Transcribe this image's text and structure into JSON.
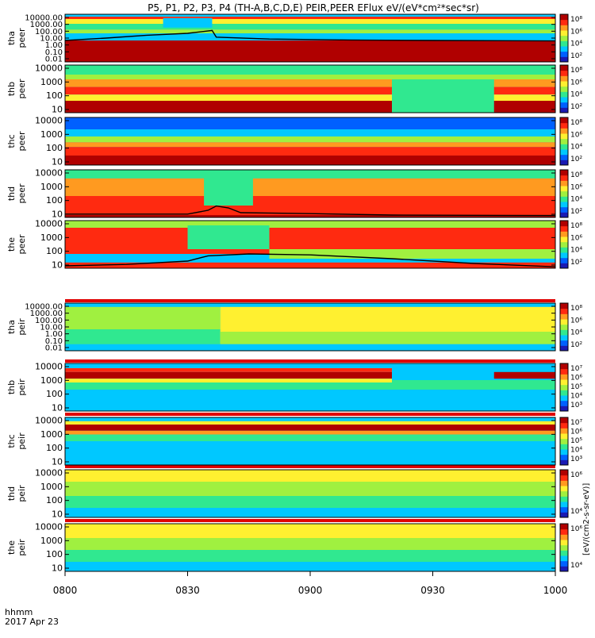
{
  "chart_data": {
    "type": "heatmap",
    "title": "P5, P1, P2, P3, P4 (TH-A,B,C,D,E) PEIR,PEER EFlux eV/(eV*cm²*sec*sr)",
    "colorbar_title": "[eV/(cm2-s-sr-eV)]",
    "x": {
      "ticks": [
        "0800",
        "0830",
        "0900",
        "0930",
        "1000"
      ],
      "range": [
        "08:00",
        "10:00"
      ],
      "label_line1": "hhmm",
      "label_line2": "2017 Apr 23"
    },
    "palette": [
      "#1a1ab3",
      "#0060ff",
      "#00c8ff",
      "#30e890",
      "#a0f040",
      "#fff030",
      "#ff9a20",
      "#ff2a10",
      "#b00000"
    ],
    "panels": [
      {
        "id": "tha-peer",
        "probe": "tha",
        "instrument": "peer",
        "yticks": [
          "10000.00",
          "1000.00",
          "100.00",
          "10.00",
          "1.00",
          "0.10",
          "0.01"
        ],
        "cbar_ticks": [
          "10⁸",
          "10⁶",
          "10⁴",
          "10²"
        ],
        "bands": [
          {
            "level": 7,
            "x": [
              0,
              120
            ],
            "y": [
              0.05,
              0.1
            ]
          },
          {
            "level": 5,
            "x": [
              0,
              120
            ],
            "y": [
              0.1,
              0.2
            ]
          },
          {
            "level": 3,
            "x": [
              0,
              120
            ],
            "y": [
              0.2,
              0.32
            ]
          },
          {
            "level": 4,
            "x": [
              0,
              120
            ],
            "y": [
              0.32,
              0.4
            ]
          },
          {
            "level": 8,
            "x": [
              0,
              120
            ],
            "y": [
              0.55,
              1.0
            ]
          },
          {
            "level": 2,
            "x": [
              24,
              36
            ],
            "y": [
              0.08,
              0.28
            ]
          }
        ],
        "density_curve": [
          {
            "t": 0,
            "y": 0.55
          },
          {
            "t": 10,
            "y": 0.5
          },
          {
            "t": 20,
            "y": 0.44
          },
          {
            "t": 30,
            "y": 0.4
          },
          {
            "t": 36,
            "y": 0.34
          },
          {
            "t": 37,
            "y": 0.48
          },
          {
            "t": 50,
            "y": 0.52
          },
          {
            "t": 70,
            "y": 0.54
          },
          {
            "t": 90,
            "y": 0.55
          },
          {
            "t": 120,
            "y": 0.56
          }
        ]
      },
      {
        "id": "thb-peer",
        "probe": "thb",
        "instrument": "peer",
        "yticks": [
          "10000",
          "1000",
          "100",
          "10"
        ],
        "cbar_ticks": [
          "10⁸",
          "10⁶",
          "10⁴",
          "10²"
        ],
        "bands": [
          {
            "level": 3,
            "x": [
              0,
              120
            ],
            "y": [
              0.0,
              0.2
            ]
          },
          {
            "level": 4,
            "x": [
              0,
              120
            ],
            "y": [
              0.2,
              0.3
            ]
          },
          {
            "level": 6,
            "x": [
              0,
              120
            ],
            "y": [
              0.3,
              0.46
            ]
          },
          {
            "level": 7,
            "x": [
              0,
              120
            ],
            "y": [
              0.46,
              0.62
            ]
          },
          {
            "level": 5,
            "x": [
              0,
              120
            ],
            "y": [
              0.62,
              0.75
            ]
          },
          {
            "level": 8,
            "x": [
              0,
              80
            ],
            "y": [
              0.75,
              1.0
            ]
          },
          {
            "level": 3,
            "x": [
              80,
              105
            ],
            "y": [
              0.3,
              1.0
            ]
          },
          {
            "level": 8,
            "x": [
              105,
              120
            ],
            "y": [
              0.75,
              1.0
            ]
          }
        ]
      },
      {
        "id": "thc-peer",
        "probe": "thc",
        "instrument": "peer",
        "yticks": [
          "10000",
          "1000",
          "100",
          "10"
        ],
        "cbar_ticks": [
          "10⁸",
          "10⁶",
          "10⁴",
          "10²"
        ],
        "bands": [
          {
            "level": 1,
            "x": [
              0,
              120
            ],
            "y": [
              0.0,
              0.25
            ]
          },
          {
            "level": 2,
            "x": [
              0,
              120
            ],
            "y": [
              0.25,
              0.4
            ]
          },
          {
            "level": 4,
            "x": [
              0,
              120
            ],
            "y": [
              0.4,
              0.52
            ]
          },
          {
            "level": 6,
            "x": [
              0,
              120
            ],
            "y": [
              0.52,
              0.62
            ]
          },
          {
            "level": 7,
            "x": [
              0,
              120
            ],
            "y": [
              0.62,
              0.8
            ]
          },
          {
            "level": 8,
            "x": [
              0,
              120
            ],
            "y": [
              0.8,
              1.0
            ]
          }
        ]
      },
      {
        "id": "thd-peer",
        "probe": "thd",
        "instrument": "peer",
        "yticks": [
          "10000",
          "1000",
          "100",
          "10"
        ],
        "cbar_ticks": [
          "10⁸",
          "10⁶",
          "10⁴",
          "10²"
        ],
        "bands": [
          {
            "level": 3,
            "x": [
              0,
              120
            ],
            "y": [
              0.0,
              0.18
            ]
          },
          {
            "level": 6,
            "x": [
              0,
              120
            ],
            "y": [
              0.18,
              0.55
            ]
          },
          {
            "level": 7,
            "x": [
              0,
              120
            ],
            "y": [
              0.55,
              0.95
            ]
          },
          {
            "level": 3,
            "x": [
              34,
              46
            ],
            "y": [
              0.0,
              0.75
            ]
          },
          {
            "level": 8,
            "x": [
              0,
              120
            ],
            "y": [
              0.95,
              1.0
            ]
          }
        ],
        "density_curve": [
          {
            "t": 0,
            "y": 0.93
          },
          {
            "t": 30,
            "y": 0.93
          },
          {
            "t": 35,
            "y": 0.85
          },
          {
            "t": 37,
            "y": 0.76
          },
          {
            "t": 40,
            "y": 0.8
          },
          {
            "t": 43,
            "y": 0.9
          },
          {
            "t": 60,
            "y": 0.92
          },
          {
            "t": 80,
            "y": 0.95
          },
          {
            "t": 120,
            "y": 0.96
          }
        ]
      },
      {
        "id": "the-peer",
        "probe": "the",
        "instrument": "peer",
        "yticks": [
          "10000",
          "1000",
          "100",
          "10"
        ],
        "cbar_ticks": [
          "10⁸",
          "10⁶",
          "10⁴",
          "10²"
        ],
        "bands": [
          {
            "level": 4,
            "x": [
              0,
              120
            ],
            "y": [
              0.0,
              0.15
            ]
          },
          {
            "level": 7,
            "x": [
              0,
              120
            ],
            "y": [
              0.15,
              0.7
            ]
          },
          {
            "level": 3,
            "x": [
              30,
              50
            ],
            "y": [
              0.1,
              0.6
            ]
          },
          {
            "level": 4,
            "x": [
              50,
              120
            ],
            "y": [
              0.6,
              0.8
            ]
          },
          {
            "level": 7,
            "x": [
              0,
              120
            ],
            "y": [
              0.88,
              1.0
            ]
          }
        ],
        "density_curve": [
          {
            "t": 0,
            "y": 0.95
          },
          {
            "t": 15,
            "y": 0.92
          },
          {
            "t": 30,
            "y": 0.85
          },
          {
            "t": 35,
            "y": 0.74
          },
          {
            "t": 45,
            "y": 0.7
          },
          {
            "t": 60,
            "y": 0.72
          },
          {
            "t": 80,
            "y": 0.8
          },
          {
            "t": 100,
            "y": 0.9
          },
          {
            "t": 120,
            "y": 0.97
          }
        ]
      },
      {
        "id": "tha-peir",
        "probe": "tha",
        "instrument": "peir",
        "yticks": [
          "10000.00",
          "1000.00",
          "100.00",
          "10.00",
          "1.00",
          "0.10",
          "0.01"
        ],
        "cbar_ticks": [
          "10⁸",
          "10⁶",
          "10⁴",
          "10²"
        ],
        "bands": [
          {
            "level": 4,
            "x": [
              0,
              38
            ],
            "y": [
              0.08,
              0.86
            ]
          },
          {
            "level": 3,
            "x": [
              0,
              38
            ],
            "y": [
              0.55,
              0.86
            ]
          },
          {
            "level": 5,
            "x": [
              38,
              120
            ],
            "y": [
              0.08,
              0.86
            ]
          },
          {
            "level": 4,
            "x": [
              38,
              120
            ],
            "y": [
              0.6,
              0.86
            ]
          }
        ]
      },
      {
        "id": "thb-peir",
        "probe": "thb",
        "instrument": "peir",
        "yticks": [
          "10000",
          "1000",
          "100",
          "10"
        ],
        "cbar_ticks": [
          "10⁷",
          "10⁶",
          "10⁵",
          "10⁴",
          "10³"
        ],
        "bands": [
          {
            "level": 2,
            "x": [
              0,
              120
            ],
            "y": [
              0.0,
              1.0
            ]
          },
          {
            "level": 3,
            "x": [
              0,
              120
            ],
            "y": [
              0.35,
              0.55
            ]
          },
          {
            "level": 8,
            "x": [
              0,
              80
            ],
            "y": [
              0.18,
              0.32
            ]
          },
          {
            "level": 7,
            "x": [
              0,
              80
            ],
            "y": [
              0.1,
              0.18
            ]
          },
          {
            "level": 5,
            "x": [
              0,
              80
            ],
            "y": [
              0.32,
              0.4
            ]
          },
          {
            "level": 8,
            "x": [
              105,
              120
            ],
            "y": [
              0.18,
              0.32
            ]
          }
        ]
      },
      {
        "id": "thc-peir",
        "probe": "thc",
        "instrument": "peir",
        "yticks": [
          "10000",
          "1000",
          "100",
          "10"
        ],
        "cbar_ticks": [
          "10⁷",
          "10⁶",
          "10⁵",
          "10⁴",
          "10³"
        ],
        "bands": [
          {
            "level": 2,
            "x": [
              0,
              120
            ],
            "y": [
              0.0,
              1.0
            ]
          },
          {
            "level": 5,
            "x": [
              0,
              120
            ],
            "y": [
              0.08,
              0.15
            ]
          },
          {
            "level": 8,
            "x": [
              0,
              120
            ],
            "y": [
              0.15,
              0.28
            ]
          },
          {
            "level": 6,
            "x": [
              0,
              120
            ],
            "y": [
              0.28,
              0.36
            ]
          },
          {
            "level": 3,
            "x": [
              0,
              120
            ],
            "y": [
              0.36,
              0.5
            ]
          }
        ]
      },
      {
        "id": "thd-peir",
        "probe": "thd",
        "instrument": "peir",
        "yticks": [
          "10000",
          "1000",
          "100",
          "10"
        ],
        "cbar_ticks": [
          "10⁶",
          "10⁴"
        ],
        "bands": [
          {
            "level": 3,
            "x": [
              0,
              120
            ],
            "y": [
              0.0,
              1.0
            ]
          },
          {
            "level": 5,
            "x": [
              0,
              120
            ],
            "y": [
              0.0,
              0.25
            ]
          },
          {
            "level": 4,
            "x": [
              0,
              120
            ],
            "y": [
              0.25,
              0.55
            ]
          },
          {
            "level": 2,
            "x": [
              0,
              120
            ],
            "y": [
              0.8,
              1.0
            ]
          }
        ]
      },
      {
        "id": "the-peir",
        "probe": "the",
        "instrument": "peir",
        "yticks": [
          "10000",
          "1000",
          "100",
          "10"
        ],
        "cbar_ticks": [
          "10⁶",
          "10⁴"
        ],
        "bands": [
          {
            "level": 3,
            "x": [
              0,
              120
            ],
            "y": [
              0.0,
              1.0
            ]
          },
          {
            "level": 5,
            "x": [
              0,
              120
            ],
            "y": [
              0.0,
              0.3
            ]
          },
          {
            "level": 4,
            "x": [
              0,
              120
            ],
            "y": [
              0.3,
              0.55
            ]
          },
          {
            "level": 2,
            "x": [
              0,
              120
            ],
            "y": [
              0.8,
              1.0
            ]
          }
        ]
      }
    ]
  }
}
